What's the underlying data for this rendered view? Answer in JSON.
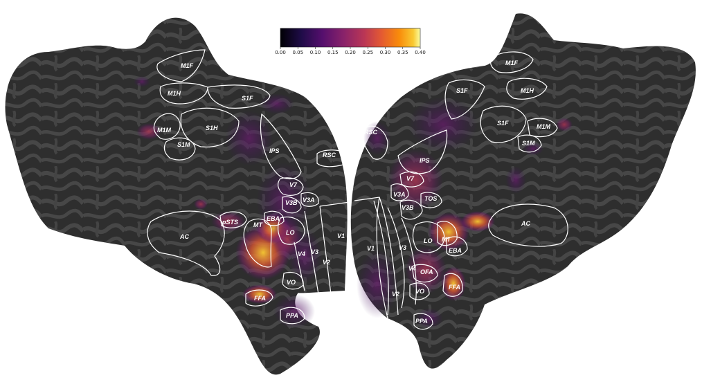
{
  "colorbar": {
    "colormap": "inferno",
    "range": [
      0.0,
      0.4
    ],
    "tick_labels": [
      "0.00",
      "0.05",
      "0.10",
      "0.15",
      "0.20",
      "0.25",
      "0.30",
      "0.35",
      "0.40"
    ]
  },
  "colors": {
    "cortex_dark": "#2f2f2f",
    "cortex_light": "#464646",
    "roi_outline": "#ffffff"
  },
  "left_hemisphere": {
    "roi_labels": [
      "M1F",
      "M1H",
      "S1F",
      "M1M",
      "S1H",
      "S1M",
      "IPS",
      "RSC",
      "V7",
      "V3A",
      "V3B",
      "pSTS",
      "EBA",
      "MT",
      "AC",
      "LO",
      "V1",
      "V4",
      "V3",
      "V2",
      "VO",
      "FFA",
      "PPA"
    ]
  },
  "right_hemisphere": {
    "roi_labels": [
      "M1F",
      "S1F",
      "M1H",
      "S1F",
      "M1M",
      "S1M",
      "RSC",
      "IPS",
      "V7",
      "V3A",
      "TOS",
      "V3B",
      "AC",
      "LO",
      "MT",
      "EBA",
      "V1",
      "V3",
      "V4",
      "OFA",
      "FFA",
      "V2",
      "VO",
      "PPA"
    ]
  }
}
